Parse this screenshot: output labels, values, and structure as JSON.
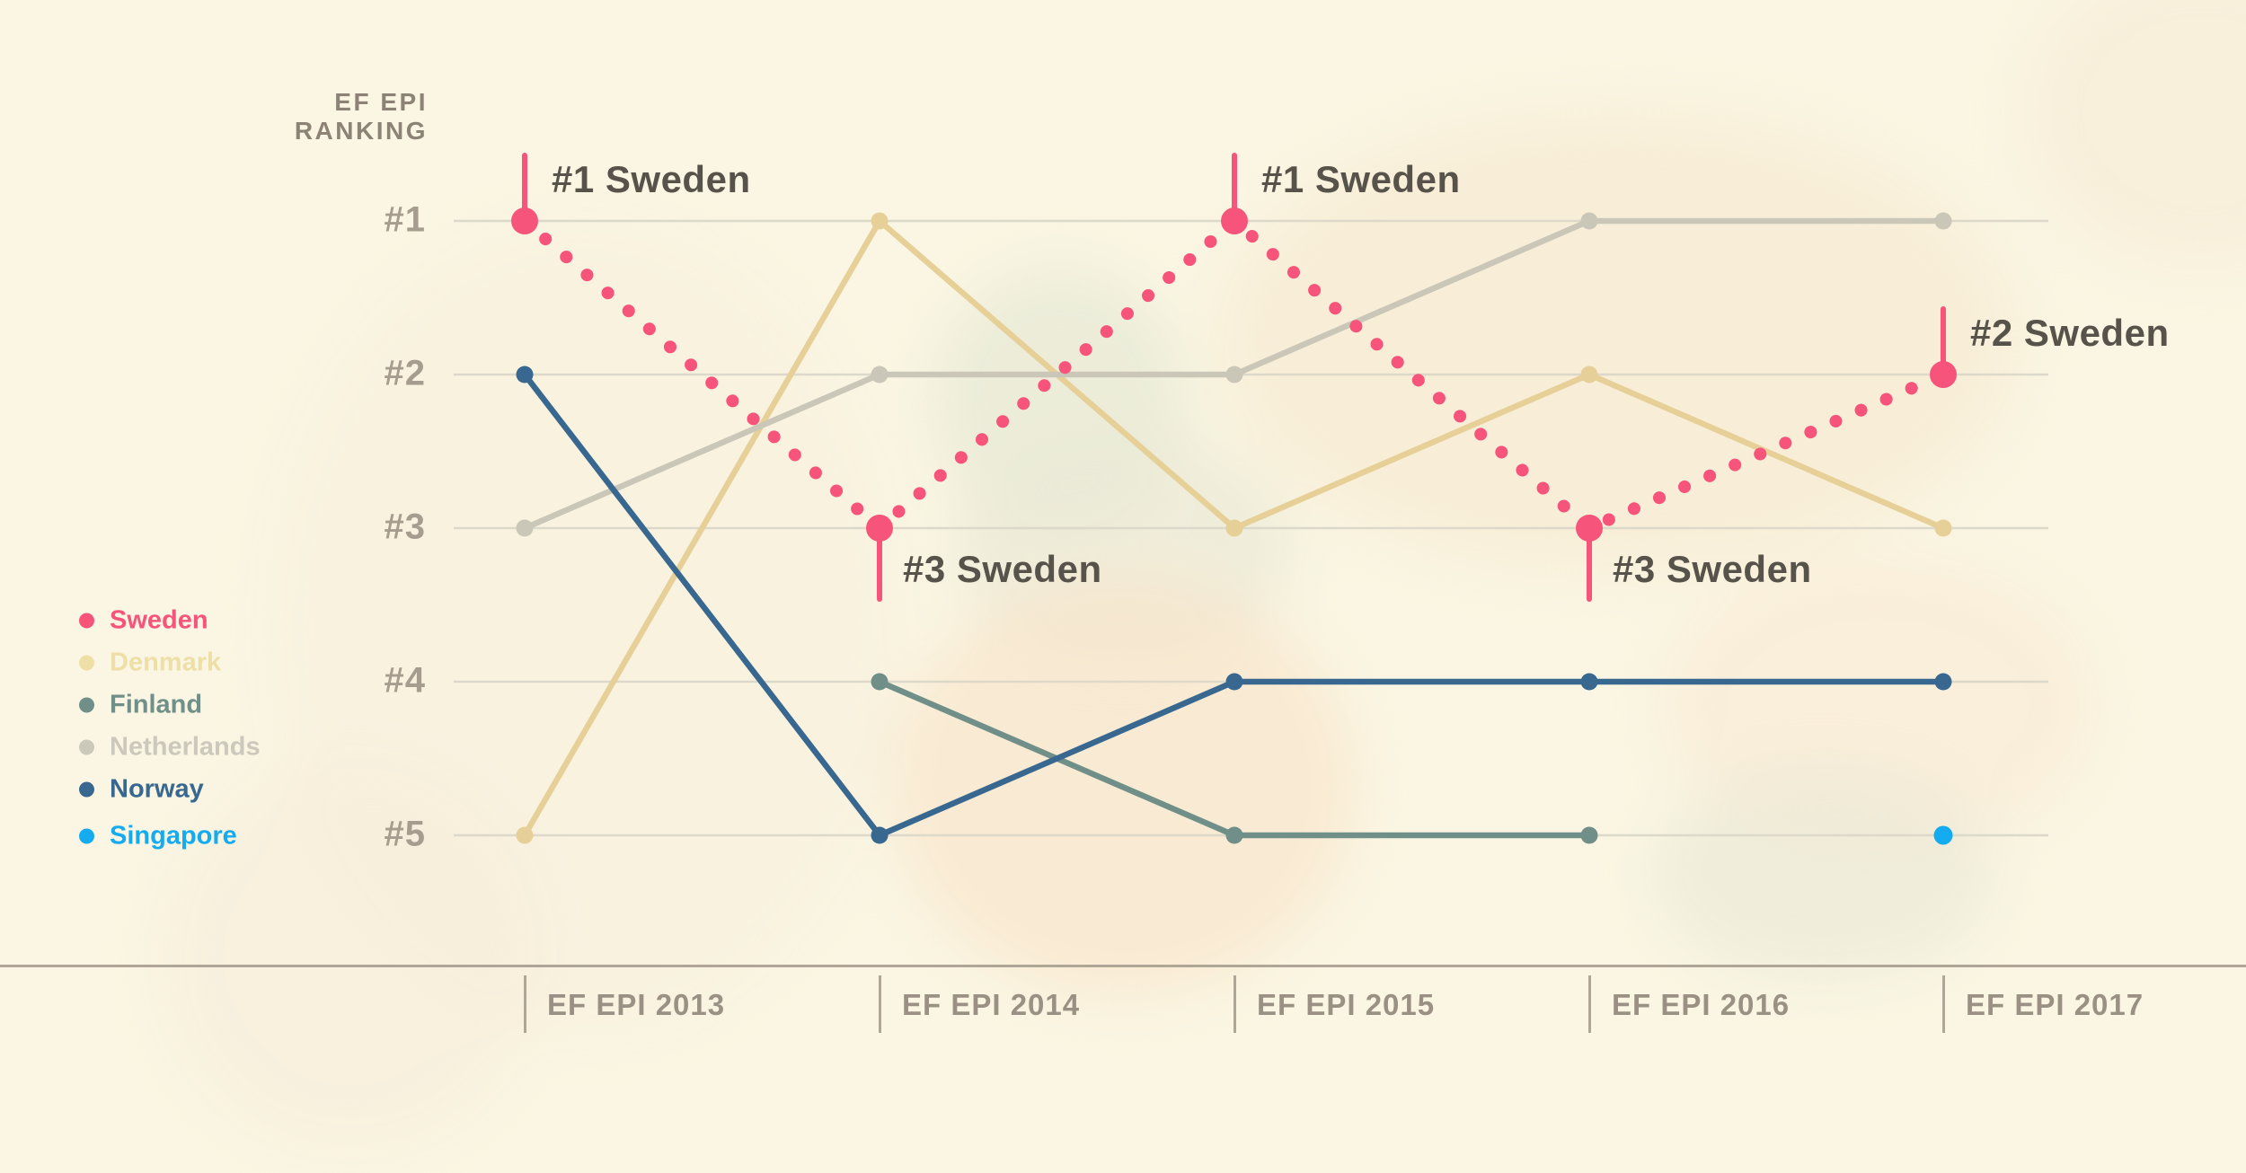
{
  "header": {
    "title_line1": "EF EPI",
    "title_line2": "RANKING"
  },
  "legend": {
    "items": [
      {
        "label": "Sweden",
        "color": "#F7547B"
      },
      {
        "label": "Denmark",
        "color": "#EDDFA6"
      },
      {
        "label": "Finland",
        "color": "#6F8F88"
      },
      {
        "label": "Netherlands",
        "color": "#CCC8BB"
      },
      {
        "label": "Norway",
        "color": "#38688F"
      },
      {
        "label": "Singapore",
        "color": "#15ABF1"
      }
    ]
  },
  "chart_data": {
    "type": "line",
    "title": "EF EPI RANKING",
    "ylabel": "EF EPI RANKING",
    "categories": [
      "2013",
      "2014",
      "2015",
      "2016",
      "2017"
    ],
    "x_tick_labels": [
      "EF EPI 2013",
      "EF EPI 2014",
      "EF EPI 2015",
      "EF EPI 2016",
      "EF EPI 2017"
    ],
    "y_tick_labels": [
      "#1",
      "#2",
      "#3",
      "#4",
      "#5"
    ],
    "ylim": [
      1,
      5
    ],
    "y_inverted": true,
    "grid": true,
    "legend_position": "left",
    "series": [
      {
        "name": "Sweden",
        "color": "#F7547B",
        "line_style": "dotted",
        "values": [
          1,
          3,
          1,
          3,
          2
        ]
      },
      {
        "name": "Denmark",
        "color": "#E7D098",
        "line_style": "solid",
        "values": [
          5,
          1,
          3,
          2,
          3
        ]
      },
      {
        "name": "Finland",
        "color": "#6F8F88",
        "line_style": "solid",
        "values": [
          null,
          4,
          5,
          5,
          null
        ]
      },
      {
        "name": "Netherlands",
        "color": "#CAC6B8",
        "line_style": "solid",
        "values": [
          3,
          2,
          2,
          1,
          1
        ]
      },
      {
        "name": "Norway",
        "color": "#38688F",
        "line_style": "solid",
        "values": [
          2,
          5,
          4,
          4,
          4
        ]
      },
      {
        "name": "Singapore",
        "color": "#15ABF1",
        "line_style": "none",
        "values": [
          null,
          null,
          null,
          null,
          5
        ]
      }
    ],
    "annotations": [
      {
        "series": "Sweden",
        "year": "2013",
        "x_index": 0,
        "rank": 1,
        "label": "#1 Sweden",
        "callout": "up"
      },
      {
        "series": "Sweden",
        "year": "2014",
        "x_index": 1,
        "rank": 3,
        "label": "#3 Sweden",
        "callout": "down"
      },
      {
        "series": "Sweden",
        "year": "2015",
        "x_index": 2,
        "rank": 1,
        "label": "#1 Sweden",
        "callout": "up"
      },
      {
        "series": "Sweden",
        "year": "2016",
        "x_index": 3,
        "rank": 3,
        "label": "#3 Sweden",
        "callout": "down"
      },
      {
        "series": "Sweden",
        "year": "2017",
        "x_index": 4,
        "rank": 2,
        "label": "#2 Sweden",
        "callout": "up"
      }
    ],
    "colors": {
      "background": "#FAF6E3",
      "grid": "#DCD8CA",
      "axis": "#AFA697",
      "x_tick_label": "#9A9184",
      "rank_label": "#A79D8F",
      "annotation_text": "#57534B",
      "title_text": "#8C8376"
    }
  }
}
